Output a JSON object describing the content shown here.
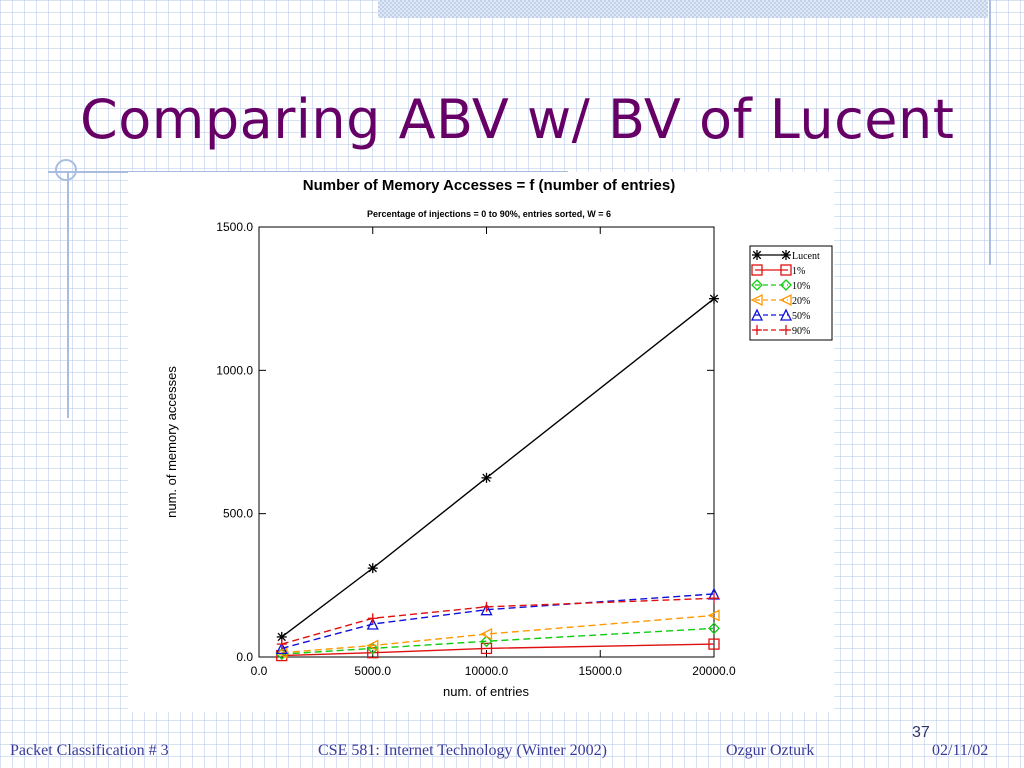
{
  "slide": {
    "title": "Comparing ABV w/ BV of Lucent",
    "number": "37"
  },
  "footer": {
    "left": "Packet Classification # 3",
    "center": "CSE 581: Internet Technology (Winter 2002)",
    "author": "Ozgur Ozturk",
    "date": "02/11/02"
  },
  "colors": {
    "title": "#660066",
    "footer": "#3a3a99",
    "accent_rule": "#a9bde0"
  },
  "chart_data": {
    "type": "line",
    "title": "Number of Memory Accesses = f (number of entries)",
    "subtitle": "Percentage of injections = 0 to 90%, entries sorted, W = 6",
    "xlabel": "num. of entries",
    "ylabel": "num. of memory accesses",
    "xlim": [
      0,
      20000
    ],
    "ylim": [
      0,
      1500
    ],
    "xticks": [
      "0.0",
      "5000.0",
      "10000.0",
      "15000.0",
      "20000.0"
    ],
    "yticks": [
      "0.0",
      "500.0",
      "1000.0",
      "1500.0"
    ],
    "grid": false,
    "legend_position": "top-right outside",
    "x": [
      1000,
      5000,
      10000,
      20000
    ],
    "series": [
      {
        "name": "Lucent",
        "values": [
          70,
          310,
          625,
          1250
        ],
        "color": "#000000",
        "marker": "asterisk",
        "dash": "solid"
      },
      {
        "name": "1%",
        "values": [
          5,
          15,
          30,
          45
        ],
        "color": "#e01010",
        "marker": "square",
        "dash": "solid"
      },
      {
        "name": "10%",
        "values": [
          10,
          30,
          55,
          100
        ],
        "color": "#10cc10",
        "marker": "diamond",
        "dash": "dashed"
      },
      {
        "name": "20%",
        "values": [
          15,
          40,
          80,
          145
        ],
        "color": "#ff9900",
        "marker": "triangle-left",
        "dash": "dashed"
      },
      {
        "name": "50%",
        "values": [
          30,
          115,
          165,
          220
        ],
        "color": "#1010dd",
        "marker": "triangle-up",
        "dash": "dashed"
      },
      {
        "name": "90%",
        "values": [
          45,
          135,
          175,
          205
        ],
        "color": "#e01010",
        "marker": "plus",
        "dash": "dashed"
      }
    ]
  }
}
